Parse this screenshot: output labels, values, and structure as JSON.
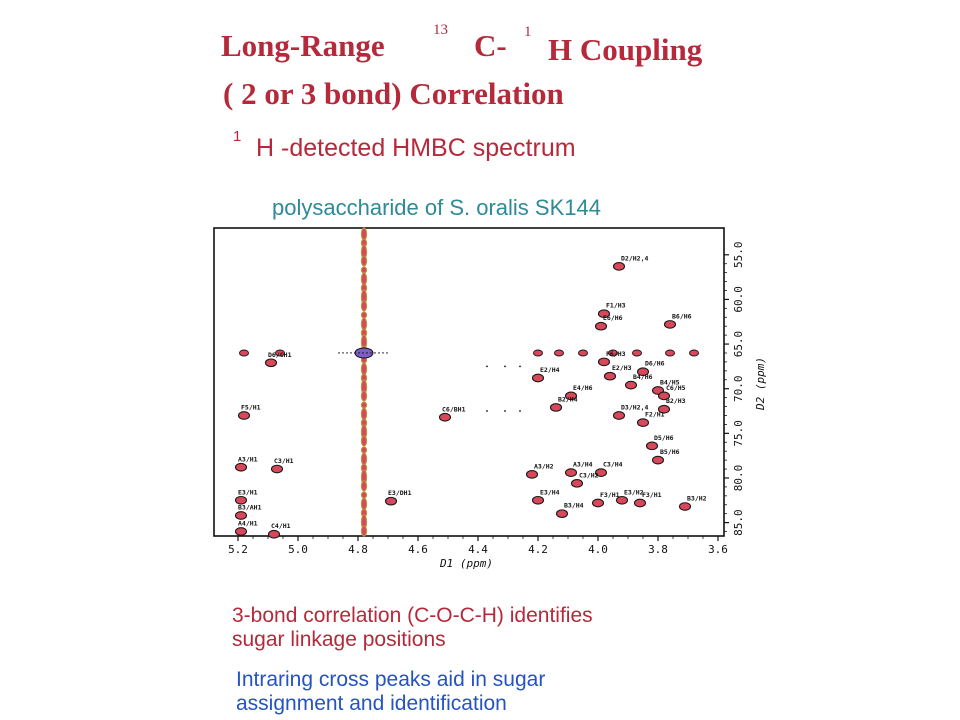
{
  "slide": {
    "title_part1": "Long-Range",
    "title_sup13": "13",
    "title_c": "C-",
    "title_sup1": "1",
    "title_part2": "H Coupling",
    "title_line2": "( 2 or 3 bond) Correlation",
    "sup1_line3": "1",
    "line3": "H -detected HMBC spectrum",
    "subtitle": "polysaccharide of S. oralis SK144",
    "bottom_text_1a": "3-bond correlation (C-O-C-H)  identifies",
    "bottom_text_1b": "sugar linkage positions",
    "bottom_text_2a": "Intraring cross peaks aid in sugar",
    "bottom_text_2b": "assignment and identification"
  },
  "colors": {
    "maroon": "#b5293a",
    "teal": "#2d8a96",
    "blue": "#2553c3",
    "peak_fill": "#d9485a",
    "peak_stroke": "#1a1a1a",
    "water_line": "#b8973a"
  },
  "chart_data": {
    "type": "scatter",
    "title": "polysaccharide of S. oralis SK144",
    "xlabel": "D1  (ppm)",
    "ylabel": "D2  (ppm)",
    "xlim": [
      5.28,
      3.58
    ],
    "ylim": [
      52.0,
      86.5
    ],
    "x_ticks": [
      "5.2",
      "5.0",
      "4.8",
      "4.6",
      "4.4",
      "4.2",
      "4.0",
      "3.8",
      "3.6"
    ],
    "y_ticks": [
      "55.0",
      "60.0",
      "65.0",
      "70.0",
      "75.0",
      "80.0",
      "85.0"
    ],
    "peaks": [
      {
        "label": "D2/H2,4",
        "x": 3.93,
        "y": 56.3
      },
      {
        "label": "F1/H3",
        "x": 3.98,
        "y": 61.6
      },
      {
        "label": "E6/H6",
        "x": 3.99,
        "y": 63.0
      },
      {
        "label": "B6/H6",
        "x": 3.76,
        "y": 62.8
      },
      {
        "label": "D6/CH1",
        "x": 5.09,
        "y": 67.1
      },
      {
        "label": "F6/H3",
        "x": 3.98,
        "y": 67.0
      },
      {
        "label": "D6/H6",
        "x": 3.85,
        "y": 68.1
      },
      {
        "label": "E2/H4",
        "x": 4.2,
        "y": 68.8
      },
      {
        "label": "E2/H3",
        "x": 3.96,
        "y": 68.6
      },
      {
        "label": "B4/H6",
        "x": 3.89,
        "y": 69.6
      },
      {
        "label": "E4/H6",
        "x": 4.09,
        "y": 70.8
      },
      {
        "label": "B4/H5",
        "x": 3.8,
        "y": 70.2
      },
      {
        "label": "C6/H5",
        "x": 3.78,
        "y": 70.8
      },
      {
        "label": "B2/H4",
        "x": 4.14,
        "y": 72.1
      },
      {
        "label": "B2/H3",
        "x": 3.78,
        "y": 72.3
      },
      {
        "label": "D3/H2,4",
        "x": 3.93,
        "y": 73.0
      },
      {
        "label": "F2/H1",
        "x": 3.85,
        "y": 73.8
      },
      {
        "label": "F5/H1",
        "x": 5.18,
        "y": 73.0
      },
      {
        "label": "C6/BH1",
        "x": 4.51,
        "y": 73.2
      },
      {
        "label": "D5/H6",
        "x": 3.82,
        "y": 76.4
      },
      {
        "label": "B5/H6",
        "x": 3.8,
        "y": 78.0
      },
      {
        "label": "A3/H1",
        "x": 5.19,
        "y": 78.8
      },
      {
        "label": "C3/H1",
        "x": 5.07,
        "y": 79.0
      },
      {
        "label": "A3/H2",
        "x": 4.22,
        "y": 79.6
      },
      {
        "label": "A3/H4",
        "x": 4.09,
        "y": 79.4
      },
      {
        "label": "C3/H4",
        "x": 3.99,
        "y": 79.4
      },
      {
        "label": "C3/H2",
        "x": 4.07,
        "y": 80.6
      },
      {
        "label": "E3/H1",
        "x": 5.19,
        "y": 82.5
      },
      {
        "label": "E3/DH1",
        "x": 4.69,
        "y": 82.6
      },
      {
        "label": "E3/H4",
        "x": 4.2,
        "y": 82.5
      },
      {
        "label": "E3/H2",
        "x": 3.92,
        "y": 82.5
      },
      {
        "label": "F3/H1",
        "x": 4.0,
        "y": 82.8
      },
      {
        "label": "F3/H1",
        "x": 3.86,
        "y": 82.8
      },
      {
        "label": "B3/H2",
        "x": 3.71,
        "y": 83.2
      },
      {
        "label": "B3/H4",
        "x": 4.12,
        "y": 84.0
      },
      {
        "label": "B3/AH1",
        "x": 5.19,
        "y": 84.2
      },
      {
        "label": "A4/H1",
        "x": 5.19,
        "y": 86.0
      },
      {
        "label": "C4/H1",
        "x": 5.08,
        "y": 86.3
      }
    ]
  }
}
